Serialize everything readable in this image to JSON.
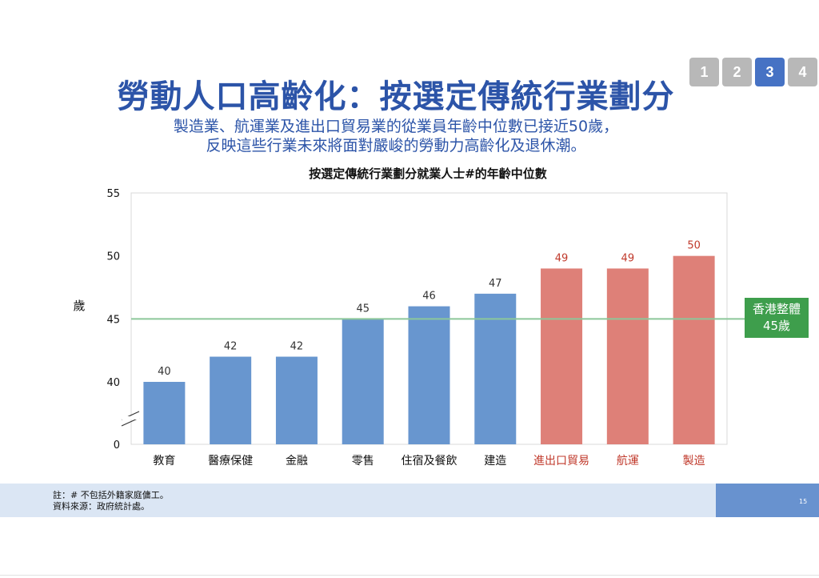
{
  "nav": {
    "pages": [
      "1",
      "2",
      "3",
      "4"
    ],
    "active_index": 2
  },
  "header": {
    "title": "勞動人口高齡化：按選定傳統行業劃分",
    "subtitle_line1": "製造業、航運業及進出口貿易業的從業員年齡中位數已接近50歲，",
    "subtitle_line2": "反映這些行業未來將面對嚴峻的勞動力高齡化及退休潮。"
  },
  "chart_data": {
    "type": "bar",
    "title": "按選定傳統行業劃分就業人士#的年齡中位數",
    "ylabel": "歲",
    "xlabel": "",
    "categories": [
      "教育",
      "醫療保健",
      "金融",
      "零售",
      "住宿及餐飲",
      "建造",
      "進出口貿易",
      "航運",
      "製造"
    ],
    "values": [
      40,
      42,
      42,
      45,
      46,
      47,
      49,
      49,
      50
    ],
    "highlighted": [
      false,
      false,
      false,
      false,
      false,
      false,
      true,
      true,
      true
    ],
    "yticks": [
      "0",
      "40",
      "45",
      "50",
      "55"
    ],
    "ylim": [
      40,
      55
    ],
    "axis_break": true,
    "grid": false,
    "reference_line": {
      "value": 45,
      "label_line1": "香港整體",
      "label_line2": "45歲"
    },
    "colors": {
      "normal_bar": "#6896cf",
      "highlight_bar": "#de8078",
      "highlight_text": "#c0392b",
      "reference_line": "#8cc79a"
    }
  },
  "footer": {
    "note": "註：# 不包括外籍家庭傭工。",
    "source": "資料來源：政府統計處。",
    "page_number": "15"
  }
}
